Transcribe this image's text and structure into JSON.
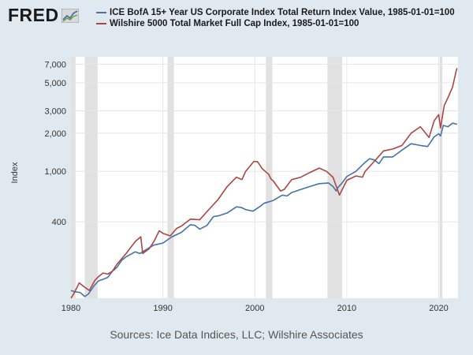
{
  "logo": {
    "text": "FRED",
    "icon": "chart-line-icon"
  },
  "chart_data": {
    "type": "line",
    "title": "",
    "xlabel": "",
    "ylabel": "Index",
    "yscale": "log",
    "xlim": [
      1980,
      2022.1
    ],
    "ylim": [
      100,
      8000
    ],
    "yticks": [
      400,
      1000,
      2000,
      3000,
      5000,
      7000
    ],
    "ytick_labels": [
      "400",
      "1,000",
      "2,000",
      "3,000",
      "5,000",
      "7,000"
    ],
    "xticks": [
      1980,
      1990,
      2000,
      2010,
      2020
    ],
    "xtick_labels": [
      "1980",
      "1990",
      "2000",
      "2010",
      "2020"
    ],
    "grid": true,
    "legend_position": "top",
    "recessions": [
      [
        1980.0,
        1980.5
      ],
      [
        1981.5,
        1982.9
      ],
      [
        1990.5,
        1991.2
      ],
      [
        2001.2,
        2001.9
      ],
      [
        2007.9,
        2009.5
      ],
      [
        2020.1,
        2020.4
      ]
    ],
    "series": [
      {
        "name": "ICE BofA 15+ Year US Corporate Index Total Return Index Value, 1985-01-01=100",
        "color": "#4572a7",
        "x": [
          1980.0,
          1980.5,
          1981.0,
          1981.5,
          1981.9,
          1982.5,
          1983.0,
          1983.5,
          1984.0,
          1984.5,
          1985.0,
          1985.5,
          1986.0,
          1986.5,
          1987.0,
          1987.5,
          1988.0,
          1989.0,
          1990.0,
          1991.0,
          1992.0,
          1993.0,
          1993.5,
          1994.0,
          1994.8,
          1995.5,
          1996.0,
          1997.0,
          1998.0,
          1998.5,
          1999.0,
          1999.8,
          2000.5,
          2001.0,
          2002.0,
          2003.0,
          2003.5,
          2004.0,
          2005.0,
          2006.0,
          2007.0,
          2008.0,
          2008.5,
          2008.85,
          2009.0,
          2009.5,
          2010.0,
          2011.0,
          2012.0,
          2012.5,
          2013.0,
          2013.5,
          2014.0,
          2015.0,
          2016.0,
          2017.0,
          2018.0,
          2018.8,
          2019.5,
          2020.0,
          2020.2,
          2020.5,
          2021.0,
          2021.5,
          2022.0
        ],
        "values": [
          115,
          112,
          111,
          103,
          108,
          125,
          137,
          141,
          146,
          163,
          175,
          198,
          212,
          222,
          232,
          225,
          237,
          262,
          272,
          305,
          330,
          380,
          375,
          350,
          375,
          440,
          445,
          470,
          525,
          520,
          500,
          485,
          525,
          560,
          590,
          650,
          640,
          680,
          720,
          760,
          800,
          810,
          760,
          700,
          740,
          810,
          910,
          1000,
          1180,
          1260,
          1230,
          1150,
          1300,
          1300,
          1470,
          1650,
          1600,
          1570,
          1870,
          1980,
          1900,
          2300,
          2250,
          2400,
          2350
        ]
      },
      {
        "name": "Wilshire 5000 Total Market Full Cap Index, 1985-01-01=100",
        "color": "#aa4643",
        "x": [
          1980.0,
          1980.3,
          1980.9,
          1981.5,
          1982.0,
          1982.6,
          1983.0,
          1983.5,
          1984.0,
          1984.5,
          1985.0,
          1986.0,
          1987.0,
          1987.6,
          1987.8,
          1988.5,
          1989.0,
          1989.6,
          1990.0,
          1990.8,
          1991.5,
          1992.0,
          1993.0,
          1994.0,
          1995.0,
          1996.0,
          1997.0,
          1998.0,
          1998.6,
          1999.0,
          1999.9,
          2000.3,
          2000.8,
          2001.5,
          2001.75,
          2002.0,
          2002.8,
          2003.2,
          2004.0,
          2005.0,
          2006.0,
          2007.0,
          2007.8,
          2008.5,
          2009.2,
          2010.0,
          2011.0,
          2011.7,
          2012.0,
          2013.0,
          2014.0,
          2015.0,
          2016.0,
          2017.0,
          2018.0,
          2018.95,
          2019.5,
          2020.0,
          2020.2,
          2020.6,
          2021.0,
          2021.5,
          2021.9,
          2022.0
        ],
        "values": [
          100,
          108,
          132,
          122,
          115,
          138,
          148,
          158,
          155,
          163,
          185,
          225,
          280,
          305,
          225,
          245,
          278,
          340,
          325,
          310,
          355,
          370,
          420,
          415,
          500,
          600,
          760,
          900,
          860,
          1000,
          1200,
          1190,
          1050,
          950,
          870,
          840,
          700,
          720,
          860,
          900,
          980,
          1060,
          1000,
          900,
          650,
          850,
          920,
          900,
          1000,
          1200,
          1450,
          1500,
          1600,
          2000,
          2250,
          1850,
          2500,
          2800,
          2200,
          3300,
          3800,
          4600,
          6200,
          6500
        ]
      }
    ]
  },
  "source": "Sources: Ice Data Indices, LLC; Wilshire Associates"
}
